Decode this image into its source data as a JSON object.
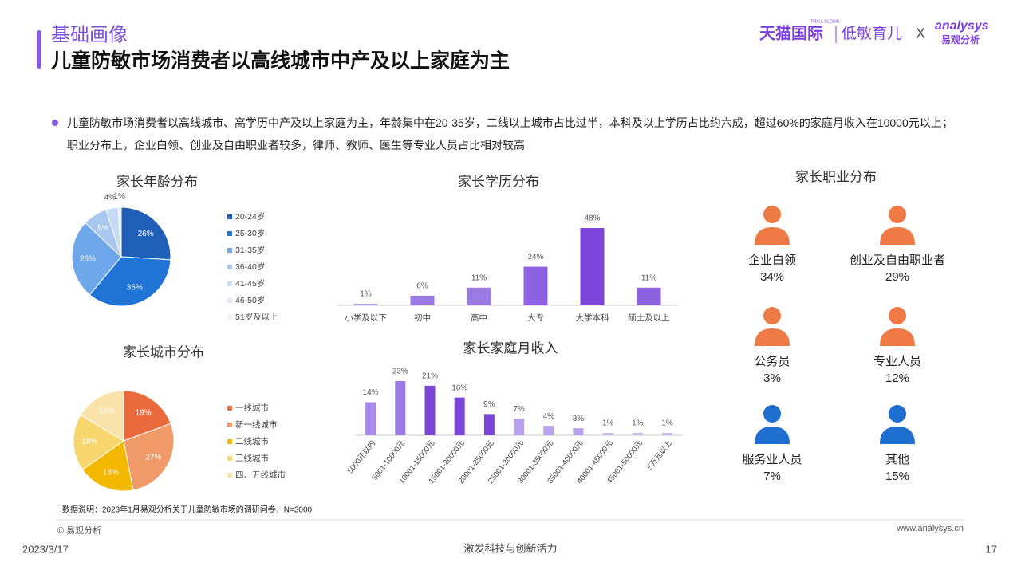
{
  "header": {
    "section": "基础画像",
    "title": "儿童防敏市场消费者以高线城市中产及以上家庭为主"
  },
  "logo": {
    "brand": "天猫国际",
    "brand_sub": "TMALL GLOBAL",
    "partner": "低敏育儿",
    "cross": "X",
    "analysys": "analysys",
    "analysys_cn": "易观分析"
  },
  "summary": "儿童防敏市场消费者以高线城市、高学历中产及以上家庭为主，年龄集中在20-35岁，二线以上城市占比过半，本科及以上学历占比约六成，超过60%的家庭月收入在10000元以上；职业分布上，企业白领、创业及自由职业者较多，律师、教师、医生等专业人员占比相对较高",
  "note": "数据说明：2023年1月易观分析关于儿童防敏市场的调研问卷，N=3000",
  "footer": {
    "copyright": "© 易观分析",
    "site": "www.analysys.cn",
    "date": "2023/3/17",
    "slogan": "激发科技与创新活力",
    "page": "17"
  },
  "chart_data": [
    {
      "type": "pie",
      "title": "家长年龄分布",
      "categories": [
        "20-24岁",
        "25-30岁",
        "31-35岁",
        "36-40岁",
        "41-45岁",
        "46-50岁",
        "51岁及以上"
      ],
      "values": [
        26,
        35,
        26,
        8,
        4,
        1,
        0
      ],
      "value_labels": [
        "26%",
        "35%",
        "26%",
        "8%",
        "4%",
        "1%",
        null
      ],
      "colors": [
        "#1f5fb8",
        "#1f74d6",
        "#6ea8ea",
        "#a8c8f0",
        "#c6dbf5",
        "#dde8f8",
        "#eef3fb"
      ]
    },
    {
      "type": "bar",
      "title": "家长学历分布",
      "categories": [
        "小学及以下",
        "初中",
        "高中",
        "大专",
        "大学本科",
        "硕士及以上"
      ],
      "values": [
        1,
        6,
        11,
        24,
        48,
        11
      ],
      "value_labels": [
        "1%",
        "6%",
        "11%",
        "24%",
        "48%",
        "11%"
      ],
      "colors": [
        "#b9a2ec",
        "#9c7ae6",
        "#9c7ae6",
        "#8c62e0",
        "#7a45d8",
        "#8c62e0"
      ]
    },
    {
      "type": "pie",
      "title": "家长城市分布",
      "categories": [
        "一线城市",
        "新一线城市",
        "二线城市",
        "三线城市",
        "四、五线城市"
      ],
      "values": [
        19,
        27,
        18,
        18,
        16
      ],
      "value_labels": [
        "19%",
        "27%",
        "18%",
        "18%",
        "16%"
      ],
      "colors": [
        "#ea6a3c",
        "#f09a6a",
        "#f5b800",
        "#f7d66e",
        "#fae3aa"
      ]
    },
    {
      "type": "bar",
      "title": "家长家庭月收入",
      "categories": [
        "5000元以内",
        "5001-10000元",
        "10001-15000元",
        "15001-20000元",
        "20001-25000元",
        "25001-30000元",
        "30001-35000元",
        "35001-40000元",
        "40001-45000元",
        "45001-50000元",
        "5万元以上"
      ],
      "values": [
        14,
        23,
        21,
        16,
        9,
        7,
        4,
        3,
        1,
        1,
        1
      ],
      "value_labels": [
        "14%",
        "23%",
        "21%",
        "16%",
        "9%",
        "7%",
        "4%",
        "3%",
        "1%",
        "1%",
        "1%"
      ],
      "colors": [
        "#a88aea",
        "#9c7ae6",
        "#7a45d8",
        "#7a45d8",
        "#7a45d8",
        "#b9a2ec",
        "#b9a2ec",
        "#b9a2ec",
        "#c9b8f0",
        "#c9b8f0",
        "#c9b8f0"
      ]
    },
    {
      "type": "icons",
      "title": "家长职业分布",
      "categories": [
        "企业白领",
        "创业及自由职业者",
        "公务员",
        "专业人员",
        "服务业人员",
        "其他"
      ],
      "values": [
        34,
        29,
        3,
        12,
        7,
        15
      ],
      "value_labels": [
        "34%",
        "29%",
        "3%",
        "12%",
        "7%",
        "15%"
      ],
      "colors": [
        "#f07a45",
        "#f07a45",
        "#f07a45",
        "#f07a45",
        "#1f6fd0",
        "#1f6fd0"
      ]
    }
  ]
}
